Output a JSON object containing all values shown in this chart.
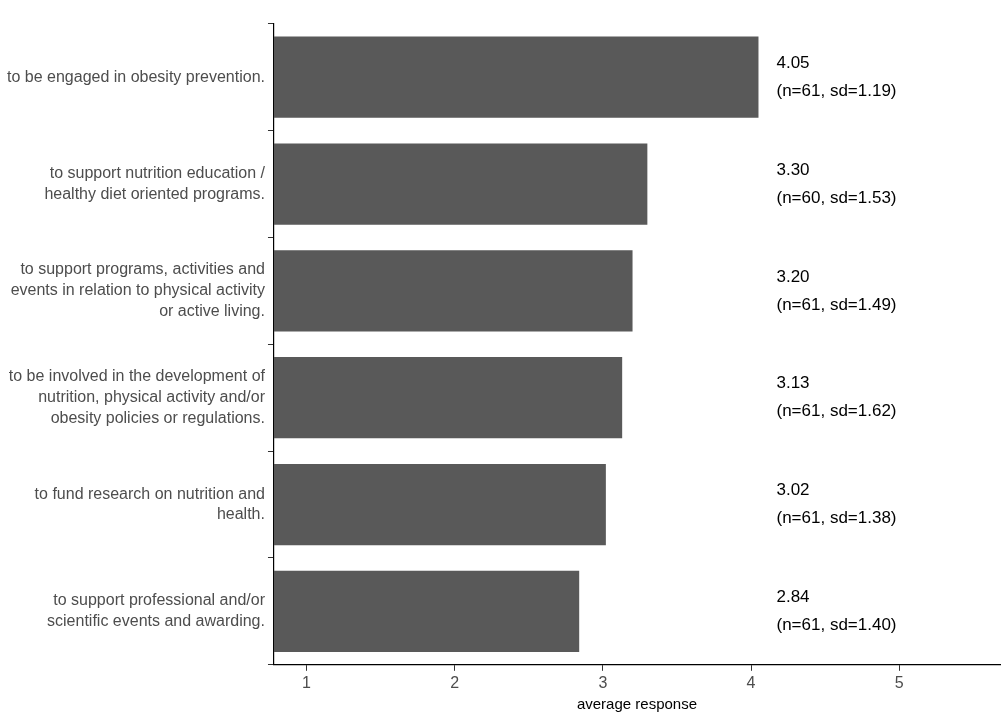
{
  "chart_data": {
    "type": "bar",
    "orientation": "horizontal",
    "categories": [
      "to be engaged in obesity prevention.",
      "to support nutrition education /\nhealthy diet oriented programs.",
      "to support programs, activities and\nevents in relation to physical activity\nor active living.",
      "to be involved in the development of\nnutrition, physical activity and/or\nobesity policies or regulations.",
      "to fund research on nutrition and\nhealth.",
      "to support professional and/or\nscientific events and awarding."
    ],
    "values": [
      4.05,
      3.3,
      3.2,
      3.13,
      3.02,
      2.84
    ],
    "value_labels": [
      "4.05\n(n=61, sd=1.19)",
      "3.30\n(n=60, sd=1.53)",
      "3.20\n(n=61, sd=1.49)",
      "3.13\n(n=61, sd=1.62)",
      "3.02\n(n=61, sd=1.38)",
      "2.84\n(n=61, sd=1.40)"
    ],
    "color": "#595959",
    "xlim": [
      0.78,
      5.68
    ],
    "xticks": [
      1,
      2,
      3,
      4,
      5
    ],
    "xlabel": "average response",
    "grid": false,
    "legend": false
  }
}
